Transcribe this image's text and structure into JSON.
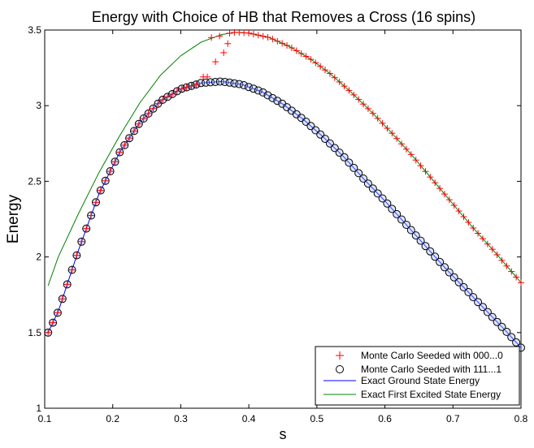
{
  "chart_data": {
    "type": "scatter",
    "title": "Energy with Choice of HB that Removes a Cross (16 spins)",
    "xlabel": "s",
    "ylabel": "Energy",
    "xlim": [
      0.1,
      0.8
    ],
    "ylim": [
      1.0,
      3.5
    ],
    "xticks": [
      0.1,
      0.2,
      0.3,
      0.4,
      0.5,
      0.6,
      0.7,
      0.8
    ],
    "xtick_labels": [
      "0.1",
      "0.2",
      "0.3",
      "0.4",
      "0.5",
      "0.6",
      "0.7",
      "0.8"
    ],
    "yticks": [
      1.0,
      1.5,
      2.0,
      2.5,
      3.0,
      3.5
    ],
    "ytick_labels": [
      "1",
      "1.5",
      "2",
      "2.5",
      "3",
      "3.5"
    ],
    "legend_position": "bottom-right",
    "series": [
      {
        "name": "Monte Carlo Seeded with 000...0",
        "kind": "marker-plus",
        "color": "#ff0000",
        "x_start": 0.105,
        "x_end": 0.8,
        "count": 100,
        "ground_state_until_s": 0.327,
        "transition_points": [
          [
            0.333,
            3.19
          ],
          [
            0.339,
            3.19
          ],
          [
            0.345,
            3.45
          ],
          [
            0.351,
            3.29
          ],
          [
            0.357,
            3.46
          ],
          [
            0.363,
            3.35
          ],
          [
            0.369,
            3.41
          ]
        ],
        "note": "Points follow the ground-state curve up to s≈0.33, then jump to the first excited state curve from s≈0.375 onward"
      },
      {
        "name": "Monte Carlo Seeded with 111...1",
        "kind": "marker-circle",
        "color": "#000000",
        "fill": "#9bb6ff",
        "x_start": 0.105,
        "x_end": 0.8,
        "count": 100,
        "follows": "ground_state"
      },
      {
        "name": "Exact Ground State Energy",
        "kind": "line",
        "color": "#0000ff",
        "points": [
          [
            0.105,
            1.5
          ],
          [
            0.12,
            1.64
          ],
          [
            0.15,
            2.05
          ],
          [
            0.18,
            2.42
          ],
          [
            0.21,
            2.69
          ],
          [
            0.24,
            2.89
          ],
          [
            0.27,
            3.03
          ],
          [
            0.3,
            3.11
          ],
          [
            0.33,
            3.15
          ],
          [
            0.36,
            3.16
          ],
          [
            0.39,
            3.14
          ],
          [
            0.42,
            3.09
          ],
          [
            0.45,
            3.01
          ],
          [
            0.48,
            2.91
          ],
          [
            0.51,
            2.79
          ],
          [
            0.54,
            2.66
          ],
          [
            0.57,
            2.51
          ],
          [
            0.6,
            2.37
          ],
          [
            0.63,
            2.22
          ],
          [
            0.66,
            2.07
          ],
          [
            0.69,
            1.92
          ],
          [
            0.72,
            1.78
          ],
          [
            0.75,
            1.64
          ],
          [
            0.78,
            1.5
          ],
          [
            0.8,
            1.4
          ]
        ]
      },
      {
        "name": "Exact First Excited State Energy",
        "kind": "line",
        "color": "#008000",
        "points": [
          [
            0.105,
            1.81
          ],
          [
            0.12,
            2.0
          ],
          [
            0.15,
            2.29
          ],
          [
            0.18,
            2.56
          ],
          [
            0.21,
            2.8
          ],
          [
            0.24,
            3.02
          ],
          [
            0.27,
            3.2
          ],
          [
            0.3,
            3.33
          ],
          [
            0.33,
            3.42
          ],
          [
            0.36,
            3.47
          ],
          [
            0.38,
            3.485
          ],
          [
            0.4,
            3.48
          ],
          [
            0.43,
            3.45
          ],
          [
            0.46,
            3.39
          ],
          [
            0.49,
            3.31
          ],
          [
            0.52,
            3.21
          ],
          [
            0.55,
            3.09
          ],
          [
            0.58,
            2.96
          ],
          [
            0.61,
            2.82
          ],
          [
            0.64,
            2.67
          ],
          [
            0.67,
            2.51
          ],
          [
            0.7,
            2.35
          ],
          [
            0.73,
            2.19
          ],
          [
            0.76,
            2.04
          ],
          [
            0.8,
            1.83
          ]
        ]
      }
    ]
  }
}
